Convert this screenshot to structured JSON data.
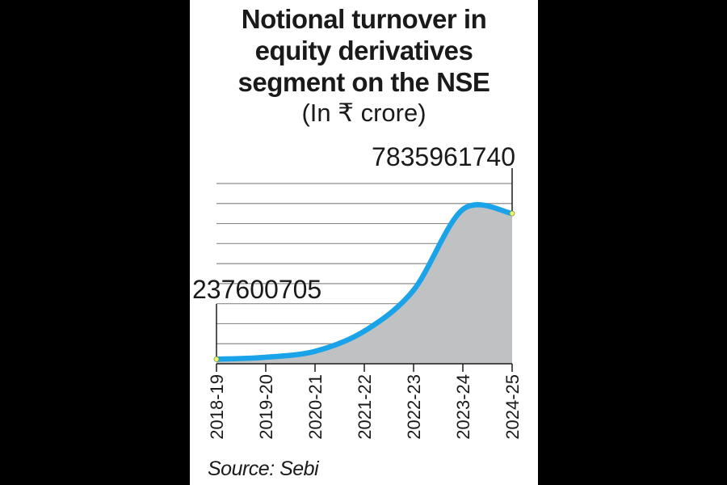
{
  "chart_data": {
    "type": "area",
    "title_lines": [
      "Notional turnover in",
      "equity derivatives",
      "segment on the NSE"
    ],
    "subtitle": "(In ₹ crore)",
    "categories": [
      "2018-19",
      "2019-20",
      "2020-21",
      "2021-22",
      "2022-23",
      "2023-24",
      "2024-25"
    ],
    "values": [
      237600705,
      339000000,
      650000000,
      1700000000,
      3840000000,
      8050000000,
      7835961740
    ],
    "annotations": [
      {
        "label": "237600705",
        "category": "2018-19"
      },
      {
        "label": "7835961740",
        "category": "2024-25"
      }
    ],
    "ylim": [
      0,
      9400000000
    ],
    "grid": true,
    "source": "Source: Sebi",
    "colors": {
      "line": "#1aa3e8",
      "fill": "#bfc1c3",
      "grid": "#8c8c8c",
      "endpoint": "#ecf56b"
    }
  }
}
